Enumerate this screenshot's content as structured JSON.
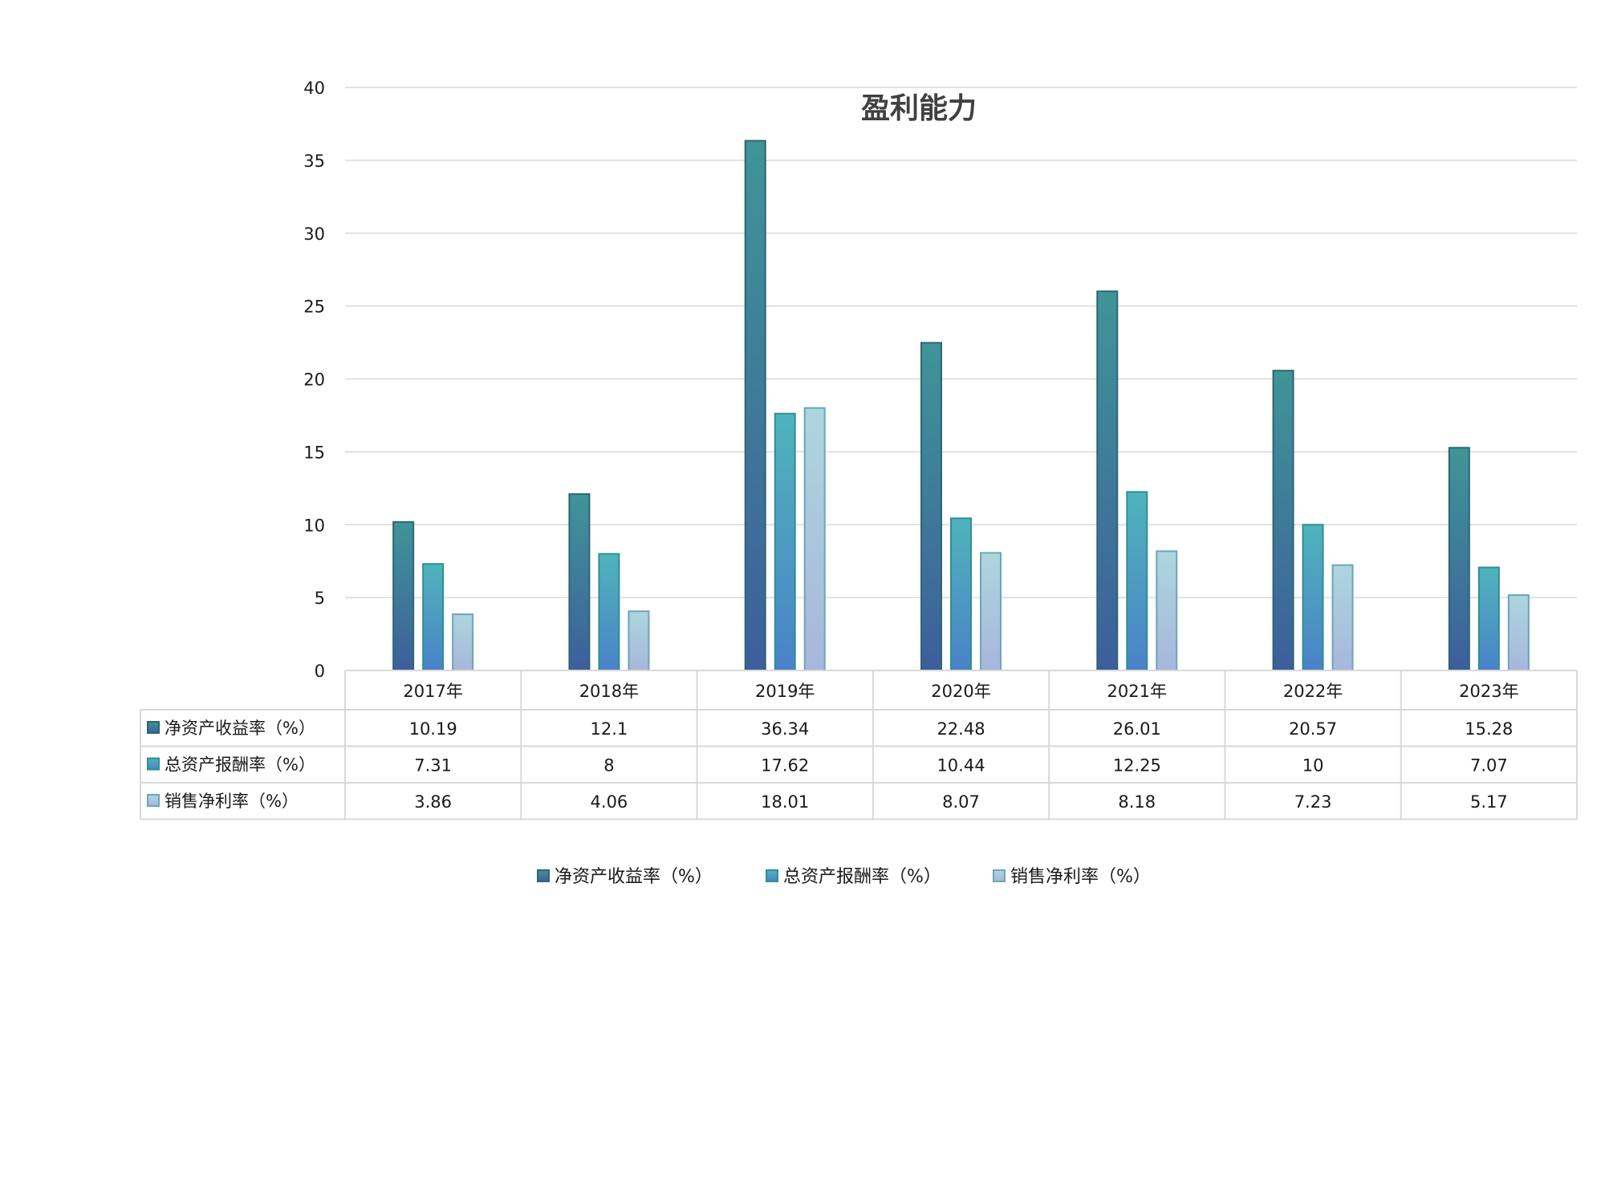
{
  "chart_data": {
    "type": "bar",
    "title": "盈利能力",
    "categories": [
      "2017年",
      "2018年",
      "2019年",
      "2020年",
      "2021年",
      "2022年",
      "2023年"
    ],
    "ylim": [
      0,
      40
    ],
    "yticks": [
      0,
      5,
      10,
      15,
      20,
      25,
      30,
      35,
      40
    ],
    "grid": true,
    "legend_placement": "bottom",
    "data_table": true,
    "series": [
      {
        "name": "净资产收益率（%）",
        "values": [
          10.19,
          12.1,
          36.34,
          22.48,
          26.01,
          20.57,
          15.28
        ],
        "labels": [
          "10.19",
          "12.1",
          "36.34",
          "22.48",
          "26.01",
          "20.57",
          "15.28"
        ],
        "color_top": "#3f9597",
        "color_bottom": "#3d5e9c",
        "border": "#2e6670"
      },
      {
        "name": "总资产报酬率（%）",
        "values": [
          7.31,
          8,
          17.62,
          10.44,
          12.25,
          10,
          7.07
        ],
        "labels": [
          "7.31",
          "8",
          "17.62",
          "10.44",
          "12.25",
          "10",
          "7.07"
        ],
        "color_top": "#4fb4bb",
        "color_bottom": "#4a82c8",
        "border": "#2f8f96"
      },
      {
        "name": "销售净利率（%）",
        "values": [
          3.86,
          4.06,
          18.01,
          8.07,
          8.18,
          7.23,
          5.17
        ],
        "labels": [
          "3.86",
          "4.06",
          "18.01",
          "8.07",
          "8.18",
          "7.23",
          "5.17"
        ],
        "color_top": "#acd6de",
        "color_bottom": "#a8b6dc",
        "border": "#6aa6b8"
      }
    ]
  }
}
